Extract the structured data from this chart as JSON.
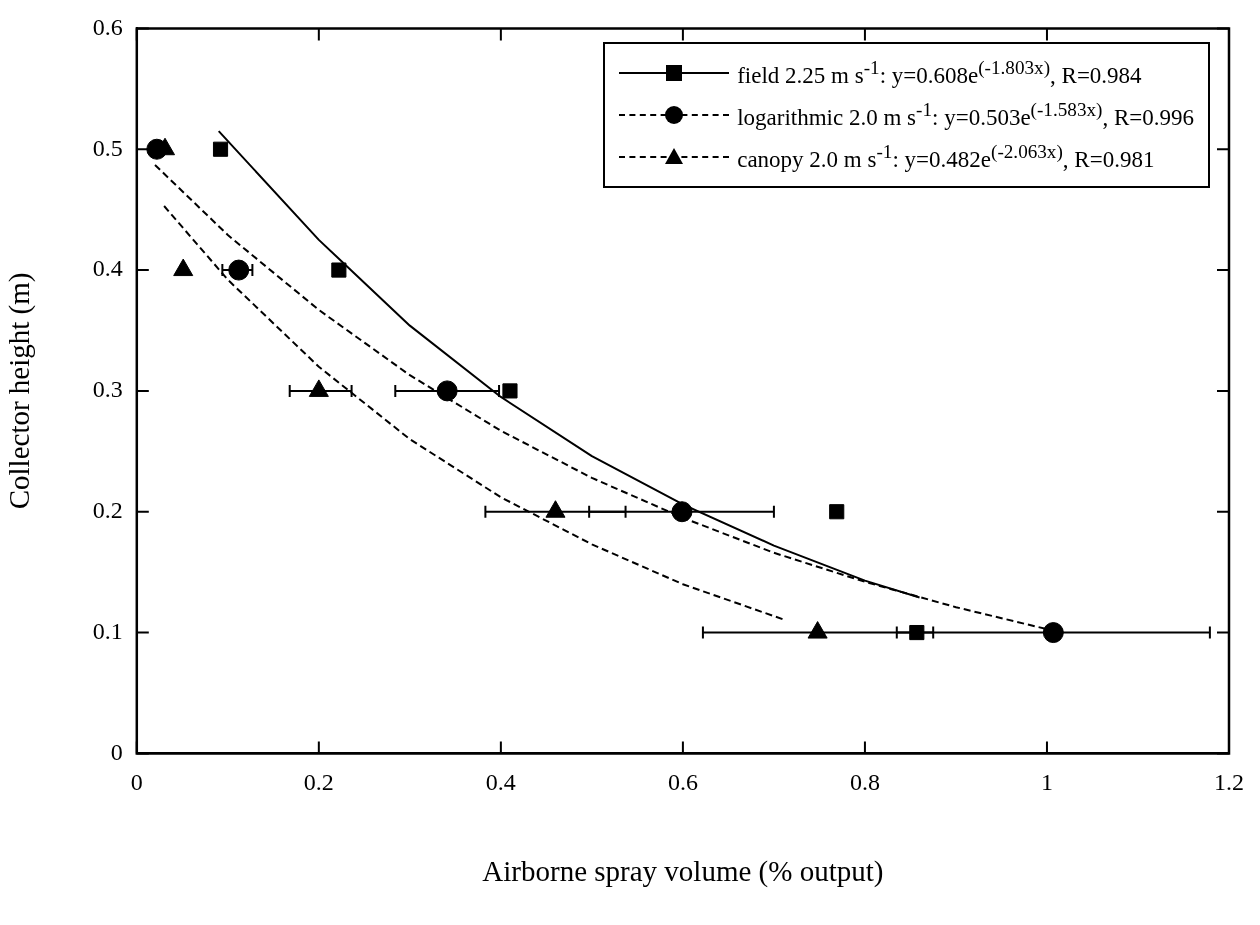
{
  "chart_data": {
    "type": "scatter",
    "xlabel": "Airborne spray volume (% output)",
    "ylabel": "Collector height (m)",
    "xlim": [
      0,
      1.2
    ],
    "xticks": [
      0,
      0.2,
      0.4,
      0.6,
      0.8,
      1,
      1.2
    ],
    "ylim": [
      0,
      0.6
    ],
    "yticks": [
      0,
      0.1,
      0.2,
      0.3,
      0.4,
      0.5,
      0.6
    ],
    "grid": false,
    "legend": "top right",
    "series": [
      {
        "name": "field 2.25 m s$^{-1}$: y=0.608e$^{(-1.803x)}$, R=0.984",
        "type": "scatter",
        "marker": "square",
        "color": "#000000",
        "x": [
          0.092,
          0.222,
          0.41,
          0.769,
          0.857
        ],
        "values": [
          0.5,
          0.4,
          0.3,
          0.2,
          0.1
        ]
      },
      {
        "type": "line",
        "line_style": "solid",
        "marker": "none",
        "color": "#000000",
        "x": [
          0.09,
          0.2,
          0.3,
          0.4,
          0.5,
          0.6,
          0.7,
          0.8,
          0.86
        ],
        "values": [
          0.515,
          0.425,
          0.354,
          0.295,
          0.246,
          0.206,
          0.172,
          0.143,
          0.129
        ]
      },
      {
        "name": "logarithmic 2.0 m s$^{-1}$: y=0.503e$^{(-1.583x)}$, R=0.996",
        "type": "scatter",
        "marker": "circle",
        "color": "#000000",
        "x": [
          0.022,
          0.112,
          0.341,
          0.599,
          1.007
        ],
        "values": [
          0.5,
          0.4,
          0.3,
          0.2,
          0.1
        ],
        "xerrors": [
          null,
          [
            0.094,
            0.127
          ],
          [
            0.284,
            0.398
          ],
          [
            0.497,
            0.7
          ],
          [
            0.835,
            1.179
          ]
        ]
      },
      {
        "type": "line",
        "line_style": "dashed",
        "marker": "none",
        "color": "#000000",
        "x": [
          0.02,
          0.1,
          0.2,
          0.3,
          0.4,
          0.5,
          0.6,
          0.7,
          0.8,
          0.9,
          1.01
        ],
        "values": [
          0.487,
          0.429,
          0.367,
          0.313,
          0.267,
          0.228,
          0.195,
          0.166,
          0.142,
          0.121,
          0.101
        ]
      },
      {
        "name": "canopy 2.0 m s$^{-1}$: y=0.482e$^{(-2.063x)}$, R=0.981",
        "type": "scatter",
        "marker": "triangle",
        "color": "#000000",
        "x": [
          0.031,
          0.051,
          0.2,
          0.46,
          0.748
        ],
        "values": [
          0.5,
          0.4,
          0.3,
          0.2,
          0.1
        ],
        "xerrors": [
          null,
          null,
          [
            0.168,
            0.236
          ],
          [
            0.383,
            0.537
          ],
          [
            0.622,
            0.875
          ]
        ]
      },
      {
        "type": "line",
        "line_style": "dashed",
        "marker": "none",
        "color": "#000000",
        "x": [
          0.03,
          0.1,
          0.2,
          0.3,
          0.4,
          0.5,
          0.6,
          0.71
        ],
        "values": [
          0.453,
          0.392,
          0.32,
          0.26,
          0.212,
          0.173,
          0.14,
          0.111
        ]
      }
    ]
  }
}
